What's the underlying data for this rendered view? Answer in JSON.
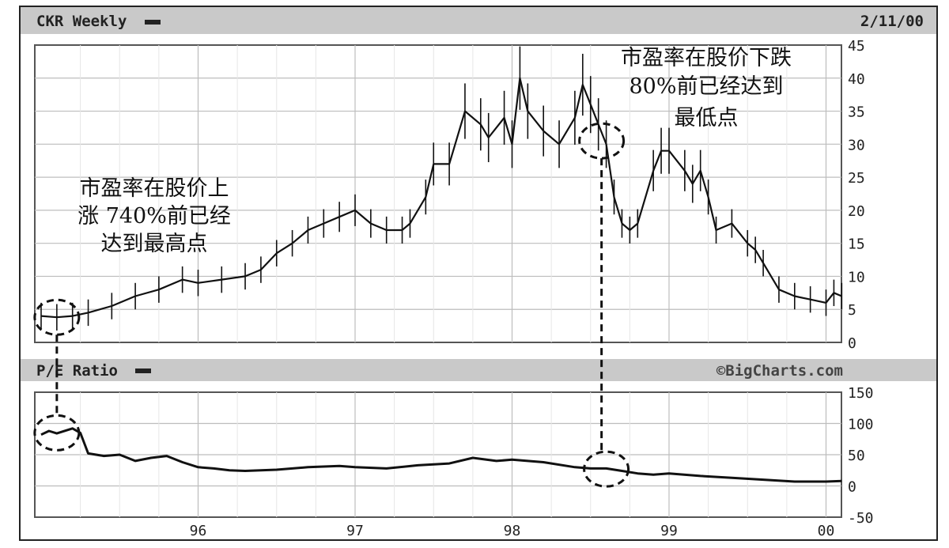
{
  "header": {
    "title": "CKR Weekly",
    "date": "2/11/00"
  },
  "pe_panel": {
    "title": "P/E Ratio",
    "watermark": "©BigCharts.com"
  },
  "annotations": {
    "left": [
      "市盈率在股价上",
      "涨 740%前已经",
      "达到最高点"
    ],
    "right": [
      "市盈率在股价下跌",
      "80%前已经达到",
      "最低点"
    ]
  },
  "chart_data": [
    {
      "type": "line",
      "title": "CKR Weekly",
      "ylim": [
        0,
        45
      ],
      "yticks": [
        "45",
        "40",
        "35",
        "30",
        "25",
        "20",
        "15",
        "10",
        "5",
        "0"
      ],
      "x_tick_labels": [
        "96",
        "97",
        "98",
        "99",
        "00"
      ],
      "grid": true,
      "series": [
        {
          "x": [
            1995.0,
            1995.1,
            1995.2,
            1995.3,
            1995.45,
            1995.6,
            1995.75,
            1995.9,
            1996.0,
            1996.15,
            1996.3,
            1996.4,
            1996.5,
            1996.6,
            1996.7,
            1996.8,
            1996.9,
            1997.0,
            1997.1,
            1997.2,
            1997.3,
            1997.35,
            1997.45,
            1997.5,
            1997.6,
            1997.7,
            1997.8,
            1997.85,
            1997.95,
            1998.0,
            1998.05,
            1998.1,
            1998.2,
            1998.3,
            1998.4,
            1998.45,
            1998.5,
            1998.55,
            1998.6,
            1998.65,
            1998.7,
            1998.75,
            1998.8,
            1998.9,
            1998.95,
            1999.0,
            1999.1,
            1999.15,
            1999.2,
            1999.25,
            1999.3,
            1999.4,
            1999.5,
            1999.55,
            1999.6,
            1999.7,
            1999.8,
            1999.9,
            2000.0,
            2000.05,
            2000.1
          ],
          "y": [
            4,
            3.8,
            4,
            4.5,
            5.5,
            7,
            8,
            9.5,
            9,
            9.5,
            10,
            11,
            13.5,
            15,
            17,
            18,
            19,
            20,
            18,
            17,
            17,
            18,
            22,
            27,
            27,
            35,
            33,
            31,
            34,
            30,
            40,
            35,
            32,
            30,
            34,
            39,
            36,
            33,
            30,
            22,
            18,
            17,
            18,
            26,
            29,
            29,
            26,
            24,
            26,
            22,
            17,
            18,
            15,
            14,
            12,
            8,
            7,
            6.5,
            6,
            7.5,
            7
          ]
        }
      ],
      "annotations": [
        {
          "x": 1995.1,
          "y": 3.8
        },
        {
          "x": 1998.57,
          "y": 30.5
        }
      ]
    },
    {
      "type": "line",
      "title": "P/E Ratio",
      "ylim": [
        -50,
        150
      ],
      "yticks": [
        "150",
        "100",
        "50",
        "0",
        "-50"
      ],
      "x_tick_labels": [
        "96",
        "97",
        "98",
        "99",
        "00"
      ],
      "grid": true,
      "series": [
        {
          "x": [
            1995.0,
            1995.05,
            1995.1,
            1995.2,
            1995.25,
            1995.3,
            1995.4,
            1995.5,
            1995.6,
            1995.7,
            1995.8,
            1995.9,
            1996.0,
            1996.1,
            1996.2,
            1996.3,
            1996.5,
            1996.7,
            1996.9,
            1997.0,
            1997.2,
            1997.4,
            1997.6,
            1997.75,
            1997.9,
            1998.0,
            1998.2,
            1998.4,
            1998.5,
            1998.6,
            1998.7,
            1998.8,
            1998.9,
            1999.0,
            1999.2,
            1999.4,
            1999.6,
            1999.8,
            2000.0,
            2000.1
          ],
          "y": [
            82,
            88,
            84,
            92,
            85,
            52,
            48,
            50,
            40,
            45,
            48,
            38,
            30,
            28,
            25,
            24,
            26,
            30,
            32,
            30,
            28,
            33,
            36,
            45,
            40,
            42,
            38,
            30,
            28,
            28,
            24,
            20,
            18,
            20,
            16,
            13,
            10,
            7,
            7,
            8
          ]
        }
      ],
      "annotations": [
        {
          "x": 1995.1,
          "y": 85
        },
        {
          "x": 1998.6,
          "y": 27
        }
      ]
    }
  ]
}
